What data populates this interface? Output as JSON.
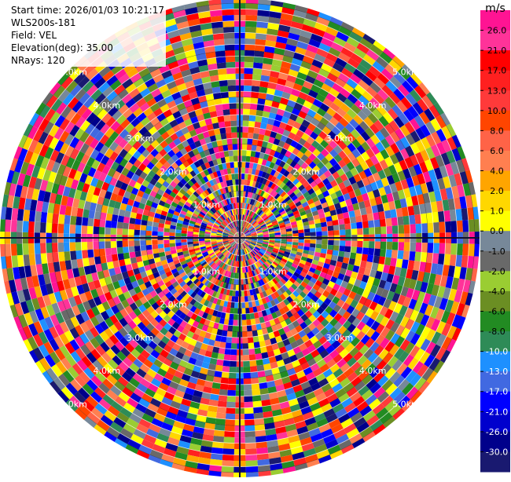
{
  "header": {
    "start_time": "Start time: 2026/01/03 10:21:17",
    "instrument": "WLS200s-181",
    "field": "Field: VEL",
    "elevation": "Elevation(deg): 35.00",
    "nrays": "NRays: 120"
  },
  "chart_data": {
    "type": "heatmap",
    "projection": "polar-ppi",
    "field": "VEL",
    "units": "m/s",
    "n_rays": 120,
    "elevation_deg": 35.0,
    "range_km": [
      0,
      5.1
    ],
    "range_ring_labels": [
      "1.0km",
      "2.0km",
      "3.0km",
      "4.0km",
      "5.0km"
    ],
    "colorbar": {
      "unit_label": "m/s",
      "ticks": [
        "26.0",
        "21.0",
        "17.0",
        "13.0",
        "10.0",
        "8.0",
        "6.0",
        "4.0",
        "2.0",
        "1.0",
        "0.0",
        "-1.0",
        "-2.0",
        "-4.0",
        "-6.0",
        "-8.0",
        "-10.0",
        "-13.0",
        "-17.0",
        "-21.0",
        "-26.0",
        "-30.0"
      ],
      "colors": [
        "#ff1493",
        "#ff3399",
        "#ff0000",
        "#ff2020",
        "#ff3a3a",
        "#ff4500",
        "#ff6347",
        "#ff7f50",
        "#ffa500",
        "#ffd700",
        "#ffff00",
        "#778899",
        "#696969",
        "#9acd32",
        "#6b8e23",
        "#228b22",
        "#2e8b57",
        "#1e90ff",
        "#4169e1",
        "#0000ff",
        "#0000cd",
        "#00008b",
        "#191970"
      ]
    }
  }
}
